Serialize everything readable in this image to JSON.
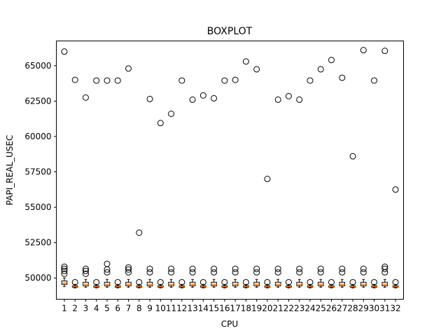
{
  "chart_data": {
    "type": "box",
    "title": "BOXPLOT",
    "xlabel": "CPU",
    "ylabel": "PAPI_REAL_USEC",
    "categories": [
      "1",
      "2",
      "3",
      "4",
      "5",
      "6",
      "7",
      "8",
      "9",
      "10",
      "11",
      "12",
      "13",
      "14",
      "15",
      "16",
      "17",
      "18",
      "19",
      "20",
      "21",
      "22",
      "23",
      "24",
      "25",
      "26",
      "27",
      "28",
      "29",
      "30",
      "31",
      "32"
    ],
    "ylim": [
      48500,
      66750
    ],
    "yticks": [
      50000,
      52500,
      55000,
      57500,
      60000,
      62500,
      65000
    ],
    "ytick_labels": [
      "50000",
      "52500",
      "55000",
      "57500",
      "60000",
      "62500",
      "65000"
    ],
    "grid": false,
    "box_color": "#000000",
    "median_color": "#ff7f0e",
    "boxes": [
      {
        "q1": 49550,
        "median": 49650,
        "q3": 49800,
        "whislo": 49400,
        "whishi": 50000,
        "fliers": [
          50300,
          50500,
          50650,
          50800,
          66000
        ]
      },
      {
        "q1": 49350,
        "median": 49400,
        "q3": 49450,
        "whislo": 49300,
        "whishi": 49550,
        "fliers": [
          49700,
          64000
        ]
      },
      {
        "q1": 49450,
        "median": 49550,
        "q3": 49700,
        "whislo": 49350,
        "whishi": 49900,
        "fliers": [
          50300,
          50500,
          50650,
          62750
        ]
      },
      {
        "q1": 49350,
        "median": 49400,
        "q3": 49450,
        "whislo": 49300,
        "whishi": 49550,
        "fliers": [
          49700,
          63950
        ]
      },
      {
        "q1": 49450,
        "median": 49550,
        "q3": 49700,
        "whislo": 49350,
        "whishi": 49900,
        "fliers": [
          50400,
          50600,
          51000,
          63950
        ]
      },
      {
        "q1": 49350,
        "median": 49400,
        "q3": 49450,
        "whislo": 49300,
        "whishi": 49550,
        "fliers": [
          49700,
          63950
        ]
      },
      {
        "q1": 49450,
        "median": 49550,
        "q3": 49700,
        "whislo": 49350,
        "whishi": 49900,
        "fliers": [
          50400,
          50600,
          50750,
          64800
        ]
      },
      {
        "q1": 49350,
        "median": 49400,
        "q3": 49450,
        "whislo": 49300,
        "whishi": 49550,
        "fliers": [
          49700,
          53200
        ]
      },
      {
        "q1": 49450,
        "median": 49550,
        "q3": 49700,
        "whislo": 49350,
        "whishi": 49900,
        "fliers": [
          50400,
          50650,
          62650
        ]
      },
      {
        "q1": 49350,
        "median": 49400,
        "q3": 49450,
        "whislo": 49300,
        "whishi": 49550,
        "fliers": [
          49700,
          60950
        ]
      },
      {
        "q1": 49450,
        "median": 49550,
        "q3": 49700,
        "whislo": 49350,
        "whishi": 49900,
        "fliers": [
          50400,
          50650,
          61600
        ]
      },
      {
        "q1": 49350,
        "median": 49400,
        "q3": 49450,
        "whislo": 49300,
        "whishi": 49550,
        "fliers": [
          49700,
          63950
        ]
      },
      {
        "q1": 49450,
        "median": 49550,
        "q3": 49700,
        "whislo": 49350,
        "whishi": 49900,
        "fliers": [
          50400,
          50650,
          62600
        ]
      },
      {
        "q1": 49350,
        "median": 49400,
        "q3": 49450,
        "whislo": 49300,
        "whishi": 49550,
        "fliers": [
          49700,
          62900
        ]
      },
      {
        "q1": 49450,
        "median": 49550,
        "q3": 49700,
        "whislo": 49350,
        "whishi": 49900,
        "fliers": [
          50400,
          50650,
          62700
        ]
      },
      {
        "q1": 49350,
        "median": 49400,
        "q3": 49450,
        "whislo": 49300,
        "whishi": 49550,
        "fliers": [
          49700,
          63950
        ]
      },
      {
        "q1": 49450,
        "median": 49550,
        "q3": 49700,
        "whislo": 49350,
        "whishi": 49900,
        "fliers": [
          50400,
          50650,
          64000
        ]
      },
      {
        "q1": 49350,
        "median": 49400,
        "q3": 49450,
        "whislo": 49300,
        "whishi": 49550,
        "fliers": [
          49700,
          65300
        ]
      },
      {
        "q1": 49450,
        "median": 49550,
        "q3": 49700,
        "whislo": 49350,
        "whishi": 49900,
        "fliers": [
          50400,
          50650,
          64750
        ]
      },
      {
        "q1": 49350,
        "median": 49400,
        "q3": 49450,
        "whislo": 49300,
        "whishi": 49550,
        "fliers": [
          49700,
          57000
        ]
      },
      {
        "q1": 49450,
        "median": 49550,
        "q3": 49700,
        "whislo": 49350,
        "whishi": 49900,
        "fliers": [
          50400,
          50650,
          62600
        ]
      },
      {
        "q1": 49350,
        "median": 49400,
        "q3": 49450,
        "whislo": 49300,
        "whishi": 49550,
        "fliers": [
          49700,
          62850
        ]
      },
      {
        "q1": 49450,
        "median": 49550,
        "q3": 49700,
        "whislo": 49350,
        "whishi": 49900,
        "fliers": [
          50400,
          50650,
          62600
        ]
      },
      {
        "q1": 49350,
        "median": 49400,
        "q3": 49450,
        "whislo": 49300,
        "whishi": 49550,
        "fliers": [
          49700,
          63950
        ]
      },
      {
        "q1": 49450,
        "median": 49550,
        "q3": 49700,
        "whislo": 49350,
        "whishi": 49900,
        "fliers": [
          50400,
          50650,
          64750
        ]
      },
      {
        "q1": 49350,
        "median": 49400,
        "q3": 49450,
        "whislo": 49300,
        "whishi": 49550,
        "fliers": [
          49700,
          65400
        ]
      },
      {
        "q1": 49450,
        "median": 49550,
        "q3": 49700,
        "whislo": 49350,
        "whishi": 49900,
        "fliers": [
          50400,
          50650,
          64150
        ]
      },
      {
        "q1": 49350,
        "median": 49400,
        "q3": 49450,
        "whislo": 49300,
        "whishi": 49550,
        "fliers": [
          49700,
          58600
        ]
      },
      {
        "q1": 49450,
        "median": 49550,
        "q3": 49700,
        "whislo": 49350,
        "whishi": 49900,
        "fliers": [
          50400,
          50650,
          66100
        ]
      },
      {
        "q1": 49350,
        "median": 49400,
        "q3": 49450,
        "whislo": 49300,
        "whishi": 49550,
        "fliers": [
          49700,
          63950
        ]
      },
      {
        "q1": 49450,
        "median": 49550,
        "q3": 49700,
        "whislo": 49350,
        "whishi": 49900,
        "fliers": [
          50400,
          50650,
          50800,
          66050
        ]
      },
      {
        "q1": 49350,
        "median": 49400,
        "q3": 49450,
        "whislo": 49300,
        "whishi": 49550,
        "fliers": [
          49700,
          56250
        ]
      }
    ]
  }
}
